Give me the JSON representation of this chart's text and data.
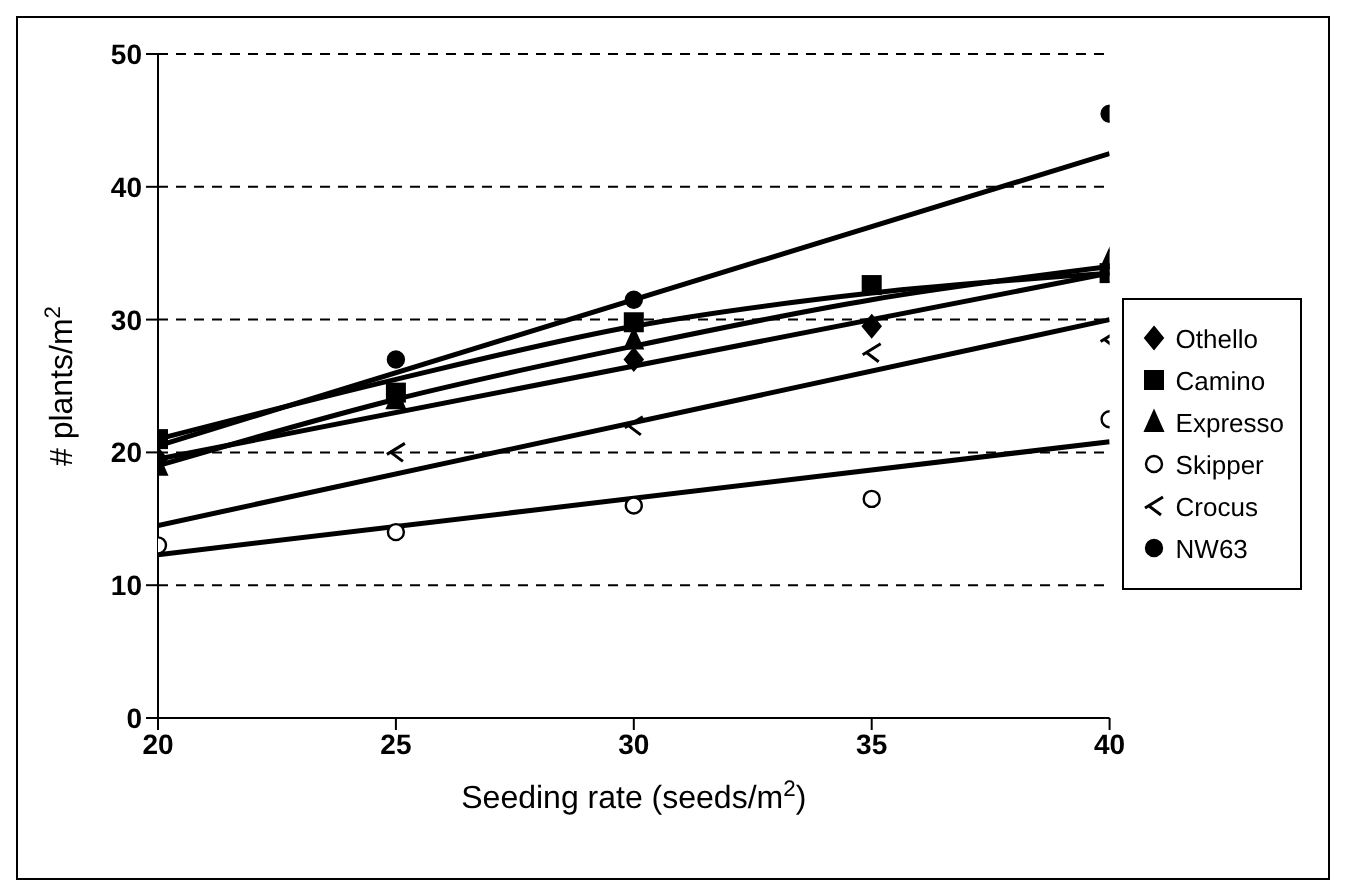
{
  "chart_data": {
    "type": "scatter",
    "xlabel": "Seeding rate (seeds/m$^{2}$)",
    "ylabel": "# plants/m$^{2}$",
    "x": [
      20,
      25,
      30,
      35,
      40
    ],
    "series": [
      {
        "name": "Othello",
        "color": "#000000",
        "marker": "diamond",
        "values": [
          19.5,
          null,
          27,
          29.5,
          null
        ]
      },
      {
        "name": "Camino",
        "color": "#000000",
        "marker": "square",
        "values": [
          21,
          24.5,
          29.8,
          32.6,
          33.5
        ]
      },
      {
        "name": "Expresso",
        "color": "#000000",
        "marker": "triangle",
        "values": [
          19,
          24,
          28.5,
          null,
          34.5
        ]
      },
      {
        "name": "Skipper",
        "color": "#ffffff",
        "marker": "circle",
        "values": [
          13,
          14,
          16,
          16.5,
          22.5
        ]
      },
      {
        "name": "Crocus",
        "color": "#000000",
        "marker": "cross",
        "values": [
          null,
          20,
          22,
          27.5,
          28.5
        ]
      },
      {
        "name": "NW63",
        "color": "#000000",
        "marker": "circle",
        "values": [
          null,
          27,
          31.5,
          null,
          45.5
        ]
      },
      {
        "type": "line",
        "color": "#000000",
        "marker": "none",
        "x": [
          20,
          40
        ],
        "values": [
          19.5,
          33.5
        ]
      },
      {
        "type": "line",
        "color": "#000000",
        "marker": "none",
        "x": [
          20,
          25,
          30,
          35,
          40
        ],
        "values": [
          21,
          25.5,
          29.5,
          32,
          33.5
        ]
      },
      {
        "type": "line",
        "color": "#000000",
        "marker": "none",
        "x": [
          20,
          25,
          30,
          35,
          40
        ],
        "values": [
          19,
          24,
          28,
          31.5,
          34
        ]
      },
      {
        "type": "line",
        "color": "#000000",
        "marker": "none",
        "x": [
          20,
          40
        ],
        "values": [
          12.3,
          20.8
        ]
      },
      {
        "type": "line",
        "color": "#000000",
        "marker": "none",
        "x": [
          20,
          40
        ],
        "values": [
          14.5,
          30
        ]
      },
      {
        "type": "line",
        "color": "#000000",
        "marker": "none",
        "x": [
          20,
          40
        ],
        "values": [
          20.5,
          42.5
        ]
      }
    ],
    "xlim": [
      20,
      40
    ],
    "xticks": [
      20,
      25,
      30,
      35,
      40
    ],
    "ylim": [
      0,
      50
    ],
    "yticks": [
      0,
      10,
      20,
      30,
      40,
      50
    ],
    "grid": "y",
    "legend": "right"
  }
}
